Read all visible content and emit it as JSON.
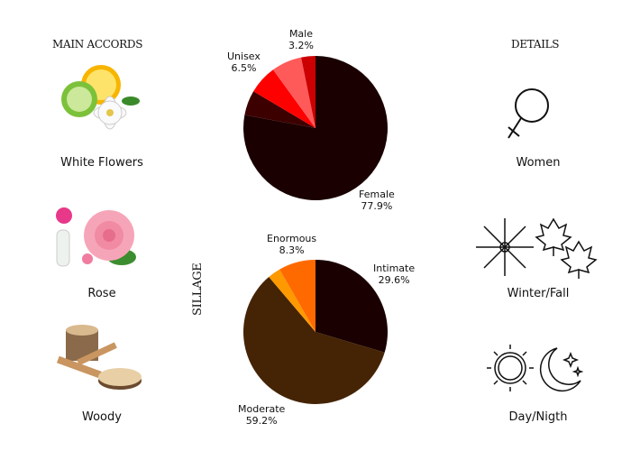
{
  "left": {
    "title": "MAIN ACCORDS",
    "items": [
      {
        "label": "White Flowers",
        "icon": "citrus-white-flower-icon"
      },
      {
        "label": "Rose",
        "icon": "rose-icon"
      },
      {
        "label": "Woody",
        "icon": "wood-icon"
      }
    ]
  },
  "right": {
    "title": "DETAILS",
    "items": [
      {
        "label": "Women",
        "icon": "female-symbol-icon"
      },
      {
        "label": "Winter/Fall",
        "icon": "snowflake-leaves-icon"
      },
      {
        "label": "Day/Nigth",
        "icon": "sun-moon-icon"
      }
    ]
  },
  "chart_data": [
    {
      "type": "pie",
      "title": "",
      "slices": [
        {
          "name": "Female",
          "value": 77.9,
          "label": "77.9%",
          "color": "#1a0000"
        },
        {
          "name": "",
          "value": 5.6,
          "label": "",
          "color": "#3d0000"
        },
        {
          "name": "Unisex",
          "value": 6.5,
          "label": "6.5%",
          "color": "#ff0000"
        },
        {
          "name": "",
          "value": 6.8,
          "label": "",
          "color": "#ff5a5a"
        },
        {
          "name": "Male",
          "value": 3.2,
          "label": "3.2%",
          "color": "#cc0000"
        }
      ]
    },
    {
      "type": "pie",
      "title": "SILLAGE",
      "slices": [
        {
          "name": "Intimate",
          "value": 29.6,
          "label": "29.6%",
          "color": "#1a0000"
        },
        {
          "name": "Moderate",
          "value": 59.2,
          "label": "59.2%",
          "color": "#452405"
        },
        {
          "name": "",
          "value": 2.9,
          "label": "",
          "color": "#ff9900"
        },
        {
          "name": "Enormous",
          "value": 8.3,
          "label": "8.3%",
          "color": "#ff6a00"
        }
      ]
    }
  ]
}
